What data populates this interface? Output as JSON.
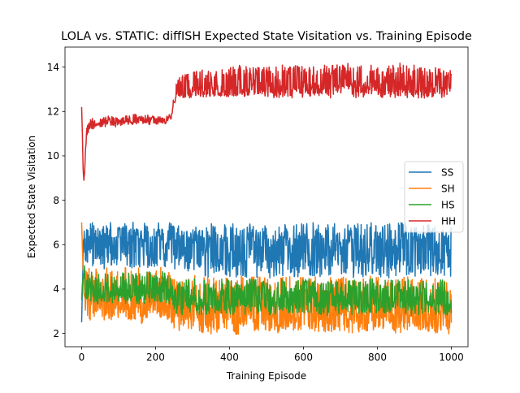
{
  "chart_data": {
    "type": "line",
    "title": "LOLA vs. STATIC: diffISH Expected State Visitation vs. Training Episode",
    "xlabel": "Training Episode",
    "ylabel": "Expected State Visitation",
    "xlim": [
      -45,
      1045
    ],
    "ylim": [
      1.4,
      14.9
    ],
    "xticks": [
      0,
      200,
      400,
      600,
      800,
      1000
    ],
    "yticks": [
      2,
      4,
      6,
      8,
      10,
      12,
      14
    ],
    "grid": false,
    "legend_position": "center-right",
    "series": [
      {
        "name": "SS",
        "color": "#1f77b4",
        "x": [
          0,
          5,
          10,
          15,
          20,
          40,
          60,
          80,
          100,
          120,
          140,
          160,
          180,
          200,
          220,
          240,
          250,
          270,
          300,
          340,
          380,
          420,
          460,
          500,
          540,
          580,
          620,
          660,
          700,
          740,
          780,
          820,
          860,
          900,
          940,
          980,
          1000
        ],
        "y": [
          2.5,
          6.3,
          5.9,
          6.2,
          6.0,
          6.2,
          6.3,
          6.1,
          6.2,
          6.4,
          6.2,
          6.3,
          6.1,
          6.3,
          6.2,
          6.2,
          6.0,
          6.1,
          5.9,
          6.0,
          6.0,
          5.8,
          6.0,
          5.9,
          5.8,
          6.0,
          5.9,
          6.0,
          5.8,
          5.9,
          6.0,
          5.9,
          5.8,
          6.0,
          5.9,
          5.8,
          5.9
        ],
        "min": [
          2.5,
          5.6,
          5.0,
          5.0,
          4.9,
          5.0,
          4.9,
          5.0,
          5.0,
          5.0,
          4.9,
          5.0,
          4.9,
          5.0,
          5.0,
          5.0,
          4.8,
          4.9,
          4.6,
          4.5,
          4.6,
          4.5,
          4.5,
          4.5,
          4.5,
          4.5,
          4.6,
          4.5,
          4.5,
          4.5,
          4.6,
          4.5,
          4.5,
          4.5,
          4.5,
          4.5,
          4.5
        ],
        "max": [
          2.5,
          6.6,
          6.9,
          7.0,
          7.0,
          7.0,
          7.0,
          7.0,
          7.0,
          7.0,
          7.1,
          7.0,
          7.0,
          7.0,
          7.0,
          7.0,
          6.8,
          6.9,
          6.9,
          7.0,
          6.9,
          7.0,
          7.0,
          6.9,
          7.0,
          6.9,
          7.0,
          7.0,
          6.9,
          7.0,
          7.0,
          6.9,
          7.0,
          7.0,
          6.9,
          7.0,
          6.9
        ]
      },
      {
        "name": "SH",
        "color": "#ff7f0e",
        "x": [
          0,
          5,
          10,
          15,
          20,
          40,
          60,
          80,
          100,
          120,
          140,
          160,
          180,
          200,
          220,
          240,
          250,
          270,
          300,
          340,
          380,
          420,
          460,
          500,
          540,
          580,
          620,
          660,
          700,
          740,
          780,
          820,
          860,
          900,
          940,
          980,
          1000
        ],
        "y": [
          7.0,
          4.8,
          3.6,
          3.3,
          3.2,
          3.1,
          3.1,
          3.0,
          3.1,
          3.2,
          3.1,
          3.0,
          3.1,
          3.1,
          3.0,
          3.1,
          2.6,
          2.6,
          2.7,
          2.6,
          2.7,
          2.6,
          2.7,
          2.6,
          2.6,
          2.7,
          2.6,
          2.7,
          2.6,
          2.6,
          2.7,
          2.6,
          2.6,
          2.7,
          2.6,
          2.6,
          2.5
        ],
        "min": [
          7.0,
          4.0,
          2.9,
          2.8,
          2.7,
          2.7,
          2.6,
          2.7,
          2.6,
          2.7,
          2.6,
          2.7,
          2.6,
          2.7,
          2.6,
          2.7,
          2.2,
          2.1,
          2.1,
          2.0,
          2.1,
          2.0,
          2.1,
          2.0,
          2.1,
          2.0,
          2.1,
          2.0,
          2.1,
          2.0,
          2.1,
          2.0,
          2.1,
          2.0,
          2.1,
          2.0,
          2.0
        ],
        "max": [
          7.0,
          5.8,
          5.3,
          5.0,
          5.2,
          4.9,
          5.0,
          4.9,
          4.8,
          5.0,
          4.9,
          5.0,
          4.8,
          4.9,
          5.0,
          4.8,
          4.5,
          4.4,
          4.6,
          4.7,
          4.5,
          4.6,
          4.6,
          4.5,
          4.7,
          4.5,
          4.6,
          4.5,
          4.6,
          4.5,
          4.6,
          4.5,
          4.6,
          4.5,
          4.6,
          4.4,
          4.6
        ]
      },
      {
        "name": "HS",
        "color": "#2ca02c",
        "x": [
          0,
          5,
          10,
          15,
          20,
          40,
          60,
          80,
          100,
          120,
          140,
          160,
          180,
          200,
          220,
          240,
          250,
          270,
          300,
          340,
          380,
          420,
          460,
          500,
          540,
          580,
          620,
          660,
          700,
          740,
          780,
          820,
          860,
          900,
          940,
          980,
          1000
        ],
        "y": [
          3.5,
          5.0,
          4.4,
          4.1,
          4.0,
          3.9,
          4.0,
          3.9,
          4.0,
          3.9,
          4.0,
          3.9,
          4.0,
          3.9,
          4.0,
          3.9,
          3.6,
          3.5,
          3.6,
          3.5,
          3.6,
          3.5,
          3.6,
          3.5,
          3.6,
          3.5,
          3.6,
          3.5,
          3.6,
          3.5,
          3.6,
          3.5,
          3.6,
          3.5,
          3.6,
          3.5,
          3.5
        ],
        "min": [
          3.5,
          4.6,
          3.6,
          3.5,
          3.4,
          3.3,
          3.4,
          3.3,
          3.4,
          3.3,
          3.4,
          3.3,
          3.4,
          3.3,
          3.4,
          3.3,
          2.9,
          2.8,
          2.9,
          2.8,
          2.9,
          2.8,
          2.9,
          2.8,
          2.9,
          2.8,
          2.9,
          2.8,
          2.9,
          2.8,
          2.9,
          2.8,
          2.9,
          2.8,
          2.9,
          2.8,
          2.8
        ],
        "max": [
          3.5,
          5.4,
          5.1,
          4.9,
          4.8,
          4.7,
          4.8,
          4.7,
          4.8,
          4.7,
          4.8,
          4.7,
          4.8,
          4.7,
          4.8,
          4.7,
          4.4,
          4.4,
          4.5,
          4.4,
          4.5,
          4.4,
          4.5,
          4.4,
          4.5,
          4.4,
          4.5,
          4.4,
          4.5,
          4.4,
          4.5,
          4.4,
          4.5,
          4.4,
          4.5,
          4.4,
          4.4
        ]
      },
      {
        "name": "HH",
        "color": "#d62728",
        "x": [
          0,
          2,
          4,
          6,
          8,
          10,
          14,
          18,
          22,
          30,
          40,
          60,
          80,
          100,
          120,
          140,
          160,
          180,
          200,
          220,
          240,
          245,
          250,
          255,
          270,
          300,
          340,
          380,
          420,
          460,
          500,
          540,
          580,
          620,
          660,
          700,
          740,
          780,
          820,
          860,
          900,
          940,
          980,
          1000
        ],
        "y": [
          12.2,
          11.0,
          9.4,
          8.9,
          9.2,
          10.2,
          11.0,
          11.2,
          11.3,
          11.4,
          11.5,
          11.5,
          11.5,
          11.5,
          11.6,
          11.6,
          11.6,
          11.6,
          11.6,
          11.6,
          11.7,
          12.0,
          12.5,
          12.7,
          12.8,
          12.9,
          13.0,
          13.0,
          13.1,
          13.1,
          13.0,
          13.1,
          13.1,
          13.0,
          13.1,
          13.2,
          13.1,
          13.1,
          13.0,
          13.1,
          13.1,
          13.0,
          13.0,
          12.9
        ],
        "min": [
          12.2,
          11.0,
          9.4,
          8.9,
          9.0,
          10.0,
          10.7,
          11.0,
          11.1,
          11.2,
          11.3,
          11.3,
          11.3,
          11.3,
          11.4,
          11.4,
          11.4,
          11.4,
          11.4,
          11.4,
          11.5,
          11.9,
          12.3,
          12.5,
          12.6,
          12.6,
          12.6,
          12.6,
          12.6,
          12.6,
          12.6,
          12.6,
          12.6,
          12.6,
          12.6,
          12.6,
          12.6,
          12.6,
          12.6,
          12.6,
          12.6,
          12.6,
          12.6,
          12.6
        ],
        "max": [
          12.2,
          11.0,
          9.4,
          8.9,
          9.4,
          10.4,
          11.3,
          11.5,
          11.6,
          11.7,
          11.7,
          11.8,
          11.8,
          11.7,
          11.8,
          11.9,
          11.8,
          11.9,
          11.8,
          11.8,
          11.9,
          12.2,
          12.8,
          13.4,
          13.6,
          13.8,
          13.9,
          13.9,
          14.1,
          14.0,
          14.0,
          14.1,
          14.1,
          14.0,
          14.1,
          14.2,
          14.2,
          14.1,
          14.0,
          14.2,
          14.1,
          14.0,
          14.0,
          13.9
        ]
      }
    ]
  }
}
